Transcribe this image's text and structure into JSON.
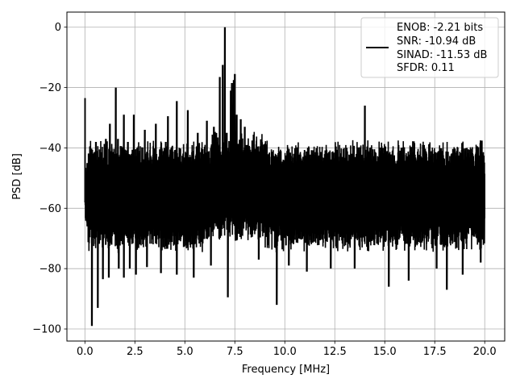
{
  "chart_data": {
    "type": "line",
    "title": "",
    "xlabel": "Frequency [MHz]",
    "ylabel": "PSD [dB]",
    "xlim": [
      -0.9,
      21.0
    ],
    "ylim": [
      -104.0,
      5.0
    ],
    "x_ticks": [
      0.0,
      2.5,
      5.0,
      7.5,
      10.0,
      12.5,
      15.0,
      17.5,
      20.0
    ],
    "x_tick_labels": [
      "0.0",
      "2.5",
      "5.0",
      "7.5",
      "10.0",
      "12.5",
      "15.0",
      "17.5",
      "20.0"
    ],
    "y_ticks": [
      0,
      -20,
      -40,
      -60,
      -80,
      -100
    ],
    "y_tick_labels": [
      "0",
      "−20",
      "−40",
      "−60",
      "−80",
      "−100"
    ],
    "grid": true,
    "legend_position": "top-right",
    "line_color": "#000000",
    "series": [
      {
        "description": "Dense noisy PSD spectrum from 0 to 20 MHz; noise floor spans roughly -40 to -72 dB with dips to -99 dB; main tone 0 dB at 7.0 MHz",
        "x_range": [
          0.0,
          20.0
        ],
        "noise_floor_high": -41,
        "noise_floor_low": -72,
        "peaks": [
          {
            "x": 0.0,
            "y": -23.5
          },
          {
            "x": 0.55,
            "y": -38.0
          },
          {
            "x": 1.05,
            "y": -37.0
          },
          {
            "x": 1.25,
            "y": -32.0
          },
          {
            "x": 1.55,
            "y": -20.0
          },
          {
            "x": 1.65,
            "y": -37.0
          },
          {
            "x": 1.95,
            "y": -29.0
          },
          {
            "x": 2.15,
            "y": -38.0
          },
          {
            "x": 2.45,
            "y": -29.0
          },
          {
            "x": 3.0,
            "y": -34.0
          },
          {
            "x": 3.55,
            "y": -32.0
          },
          {
            "x": 4.05,
            "y": -38.0
          },
          {
            "x": 4.15,
            "y": -29.5
          },
          {
            "x": 4.6,
            "y": -24.5
          },
          {
            "x": 5.15,
            "y": -27.5
          },
          {
            "x": 5.65,
            "y": -35.0
          },
          {
            "x": 6.1,
            "y": -31.0
          },
          {
            "x": 6.45,
            "y": -33.0
          },
          {
            "x": 6.75,
            "y": -16.5
          },
          {
            "x": 6.9,
            "y": -12.5
          },
          {
            "x": 7.0,
            "y": 0.0
          },
          {
            "x": 7.1,
            "y": -35.0
          },
          {
            "x": 7.3,
            "y": -21.0
          },
          {
            "x": 7.35,
            "y": -18.5
          },
          {
            "x": 7.45,
            "y": -17.5
          },
          {
            "x": 7.5,
            "y": -15.5
          },
          {
            "x": 7.6,
            "y": -29.0
          },
          {
            "x": 7.8,
            "y": -30.5
          },
          {
            "x": 8.0,
            "y": -33.0
          },
          {
            "x": 14.0,
            "y": -26.0
          }
        ],
        "dips": [
          {
            "x": 0.12,
            "y": -66.0
          },
          {
            "x": 0.35,
            "y": -99.0
          },
          {
            "x": 0.65,
            "y": -93.0
          },
          {
            "x": 0.9,
            "y": -83.5
          },
          {
            "x": 1.2,
            "y": -83.0
          },
          {
            "x": 1.7,
            "y": -80.0
          },
          {
            "x": 1.95,
            "y": -83.0
          },
          {
            "x": 2.25,
            "y": -80.0
          },
          {
            "x": 2.55,
            "y": -82.0
          },
          {
            "x": 3.1,
            "y": -79.5
          },
          {
            "x": 3.8,
            "y": -81.5
          },
          {
            "x": 4.6,
            "y": -82.0
          },
          {
            "x": 5.45,
            "y": -83.0
          },
          {
            "x": 6.3,
            "y": -79.0
          },
          {
            "x": 7.15,
            "y": -89.5
          },
          {
            "x": 8.7,
            "y": -77.0
          },
          {
            "x": 9.6,
            "y": -92.0
          },
          {
            "x": 10.2,
            "y": -79.0
          },
          {
            "x": 11.1,
            "y": -81.0
          },
          {
            "x": 12.3,
            "y": -80.0
          },
          {
            "x": 13.5,
            "y": -80.0
          },
          {
            "x": 15.2,
            "y": -86.0
          },
          {
            "x": 16.2,
            "y": -84.0
          },
          {
            "x": 17.6,
            "y": -80.0
          },
          {
            "x": 18.1,
            "y": -87.0
          },
          {
            "x": 18.9,
            "y": -82.0
          },
          {
            "x": 19.8,
            "y": -78.0
          }
        ]
      }
    ],
    "legend": {
      "lines": [
        "ENOB: -2.21 bits",
        "SNR: -10.94 dB",
        "SINAD: -11.53 dB",
        "SFDR: 0.11"
      ]
    }
  }
}
